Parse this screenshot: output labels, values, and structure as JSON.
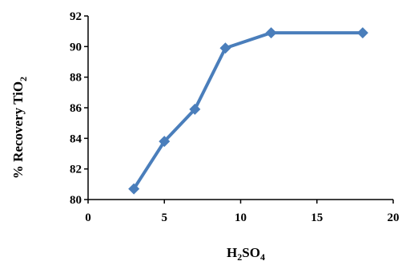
{
  "chart_data": {
    "type": "line",
    "title": "",
    "xlabel": {
      "main": "H",
      "sub1": "2",
      "mid": "SO",
      "sub2": "4"
    },
    "ylabel": {
      "main": "% Recovery TiO",
      "sub": "2"
    },
    "xlim": [
      0,
      20
    ],
    "ylim": [
      80,
      92
    ],
    "x_ticks": [
      0,
      5,
      10,
      15,
      20
    ],
    "y_ticks": [
      80,
      82,
      84,
      86,
      88,
      90,
      92
    ],
    "grid": false,
    "legend": "none",
    "series": [
      {
        "x": [
          3,
          5,
          7,
          9,
          12,
          18
        ],
        "y": [
          80.7,
          83.8,
          85.9,
          89.9,
          90.9,
          90.9
        ],
        "marker": "diamond",
        "color": "#4A7EBB"
      }
    ]
  }
}
